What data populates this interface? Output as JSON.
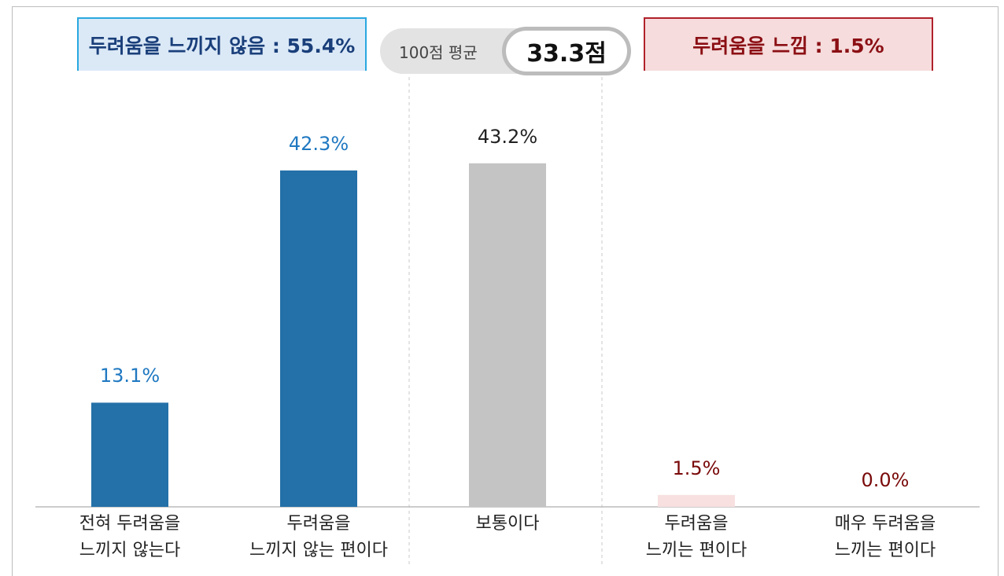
{
  "chart_data": {
    "type": "bar",
    "left_summary": "두려움을 느끼지 않음 : 55.4%",
    "average_label": "100점 평균",
    "average_value": "33.3점",
    "right_summary": "두려움을 느낌 : 1.5%",
    "categories": [
      "전혀 두려움을\n느끼지 않는다",
      "두려움을\n느끼지 않는 편이다",
      "보통이다",
      "두려움을\n느끼는 편이다",
      "매우 두려움을\n느끼는 편이다"
    ],
    "values": [
      13.1,
      42.3,
      43.2,
      1.5,
      0.0
    ],
    "value_labels": [
      "13.1%",
      "42.3%",
      "43.2%",
      "1.5%",
      "0.0%"
    ],
    "colors": [
      "#2470a8",
      "#2470a8",
      "#c4c4c4",
      "#f8e0e0",
      "#f8e0e0"
    ],
    "label_colors": [
      "#1f78c1",
      "#1f78c1",
      "#222222",
      "#7a0a0a",
      "#7a0a0a"
    ]
  }
}
